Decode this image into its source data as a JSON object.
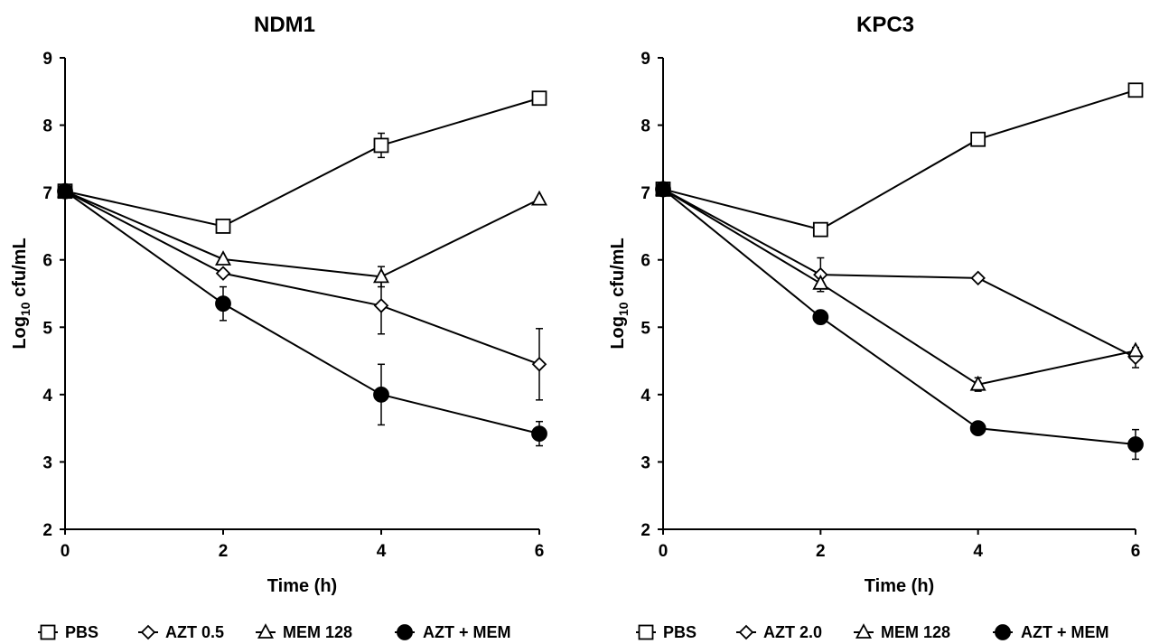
{
  "chart_data": [
    {
      "type": "line",
      "title": "NDM1",
      "xlabel": "Time (h)",
      "ylabel_main": "Log",
      "ylabel_sub": "10",
      "ylabel_rest": " cfu/mL",
      "x": [
        0,
        2,
        4,
        6
      ],
      "xlim": [
        0,
        6
      ],
      "ylim": [
        2,
        9
      ],
      "xticks": [
        0,
        2,
        4,
        6
      ],
      "yticks": [
        2,
        3,
        4,
        5,
        6,
        7,
        8,
        9
      ],
      "grid": false,
      "legend_position": "bottom",
      "series": [
        {
          "name": "PBS",
          "marker": "square",
          "filled": false,
          "values": [
            7.02,
            6.5,
            7.7,
            8.4
          ],
          "errors": [
            0,
            0,
            0.18,
            0
          ]
        },
        {
          "name": "AZT 0.5",
          "marker": "diamond",
          "filled": false,
          "values": [
            7.02,
            5.8,
            5.32,
            4.45
          ],
          "errors": [
            0,
            0,
            0.42,
            0.53
          ]
        },
        {
          "name": "MEM 128",
          "marker": "triangle",
          "filled": false,
          "values": [
            7.02,
            6.01,
            5.75,
            6.9
          ],
          "errors": [
            0,
            0,
            0.15,
            0
          ]
        },
        {
          "name": "AZT + MEM",
          "marker": "circle",
          "filled": true,
          "values": [
            7.02,
            5.35,
            4.0,
            3.42
          ],
          "errors": [
            0,
            0.25,
            0.45,
            0.18
          ]
        }
      ]
    },
    {
      "type": "line",
      "title": "KPC3",
      "xlabel": "Time (h)",
      "ylabel_main": "Log",
      "ylabel_sub": "10",
      "ylabel_rest": " cfu/mL",
      "x": [
        0,
        2,
        4,
        6
      ],
      "xlim": [
        0,
        6
      ],
      "ylim": [
        2,
        9
      ],
      "xticks": [
        0,
        2,
        4,
        6
      ],
      "yticks": [
        2,
        3,
        4,
        5,
        6,
        7,
        8,
        9
      ],
      "grid": false,
      "legend_position": "bottom",
      "series": [
        {
          "name": "PBS",
          "marker": "square",
          "filled": false,
          "values": [
            7.05,
            6.45,
            7.79,
            8.52
          ],
          "errors": [
            0,
            0,
            0,
            0
          ]
        },
        {
          "name": "AZT 2.0",
          "marker": "diamond",
          "filled": false,
          "values": [
            7.05,
            5.78,
            5.73,
            4.55
          ],
          "errors": [
            0,
            0.25,
            0,
            0.15
          ]
        },
        {
          "name": "MEM 128",
          "marker": "triangle",
          "filled": false,
          "values": [
            7.05,
            5.65,
            4.15,
            4.65
          ],
          "errors": [
            0,
            0,
            0.1,
            0
          ]
        },
        {
          "name": "AZT + MEM",
          "marker": "circle",
          "filled": true,
          "values": [
            7.05,
            5.15,
            3.5,
            3.26
          ],
          "errors": [
            0,
            0.1,
            0,
            0.22
          ]
        }
      ]
    }
  ]
}
